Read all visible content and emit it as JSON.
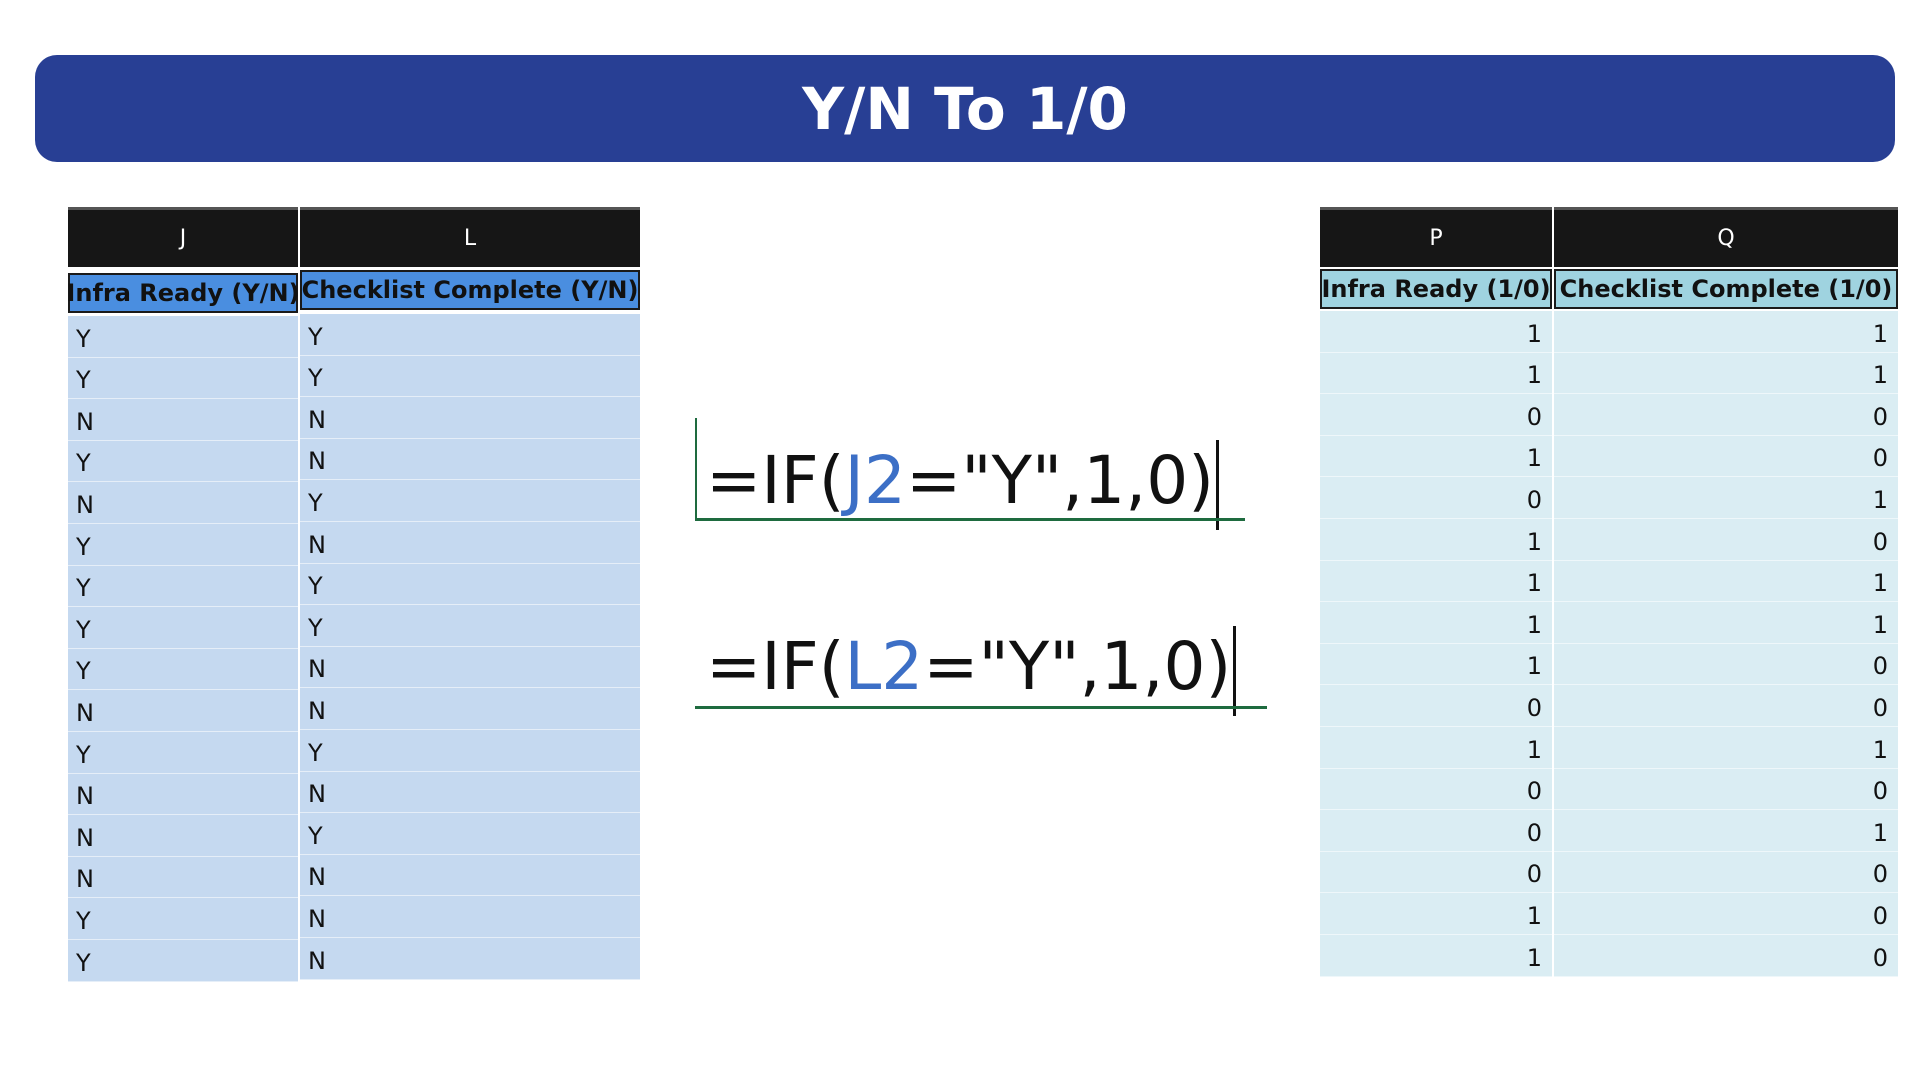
{
  "banner": {
    "title": "Y/N To 1/0"
  },
  "yn_table": {
    "columns": [
      {
        "letter": "J",
        "header": "Infra Ready (Y/N)",
        "values": [
          "Y",
          "Y",
          "N",
          "Y",
          "N",
          "Y",
          "Y",
          "Y",
          "Y",
          "N",
          "Y",
          "N",
          "N",
          "N",
          "Y",
          "Y"
        ]
      },
      {
        "letter": "L",
        "header": "Checklist Complete (Y/N)",
        "values": [
          "Y",
          "Y",
          "N",
          "N",
          "Y",
          "N",
          "Y",
          "Y",
          "N",
          "N",
          "Y",
          "N",
          "Y",
          "N",
          "N",
          "N"
        ]
      }
    ],
    "colors": {
      "letter_bg": "#161616",
      "header_bg": "#4a8ee0",
      "body_bg": "#c5d9f0"
    }
  },
  "formulas": [
    {
      "prefix": "=IF(",
      "ref": "J2",
      "suffix": "=\"Y\",1,0)"
    },
    {
      "prefix": "=IF(",
      "ref": "L2",
      "suffix": "=\"Y\",1,0)"
    }
  ],
  "binary_table": {
    "columns": [
      {
        "letter": "P",
        "header": "Infra Ready (1/0)",
        "values": [
          "1",
          "1",
          "0",
          "1",
          "0",
          "1",
          "1",
          "1",
          "1",
          "0",
          "1",
          "0",
          "0",
          "0",
          "1",
          "1"
        ]
      },
      {
        "letter": "Q",
        "header": "Checklist Complete (1/0)",
        "values": [
          "1",
          "1",
          "0",
          "0",
          "1",
          "0",
          "1",
          "1",
          "0",
          "0",
          "1",
          "0",
          "1",
          "0",
          "0",
          "0"
        ]
      }
    ],
    "colors": {
      "letter_bg": "#161616",
      "header_bg": "#9fd3e0",
      "body_bg": "#daedf3"
    }
  },
  "colors": {
    "banner": "#283f94",
    "formula_ref": "#3c6fc6",
    "formula_rule": "#1e6b3f"
  }
}
